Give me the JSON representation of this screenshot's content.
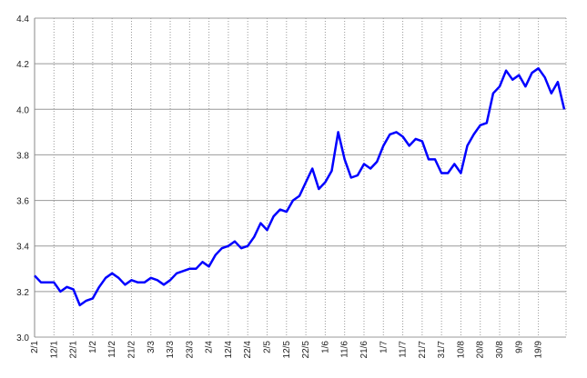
{
  "chart_data": {
    "type": "line",
    "categories": [
      "2/1",
      null,
      null,
      "12/1",
      null,
      null,
      "22/1",
      null,
      null,
      "1/2",
      null,
      null,
      "11/2",
      null,
      null,
      "21/2",
      null,
      null,
      "3/3",
      null,
      null,
      "13/3",
      null,
      null,
      "23/3",
      null,
      null,
      "2/4",
      null,
      null,
      "12/4",
      null,
      null,
      "22/4",
      null,
      null,
      "2/5",
      null,
      null,
      "12/5",
      null,
      null,
      "22/5",
      null,
      null,
      "1/6",
      null,
      null,
      "11/6",
      null,
      null,
      "21/6",
      null,
      null,
      "1/7",
      null,
      null,
      "11/7",
      null,
      null,
      "21/7",
      null,
      null,
      "31/7",
      null,
      null,
      "10/8",
      null,
      null,
      "20/8",
      null,
      null,
      "30/8",
      null,
      null,
      "9/9",
      null,
      null,
      "19/9",
      null,
      null,
      null,
      null
    ],
    "values": [
      3.27,
      3.24,
      3.24,
      3.24,
      3.2,
      3.22,
      3.21,
      3.14,
      3.16,
      3.17,
      3.22,
      3.26,
      3.28,
      3.26,
      3.23,
      3.25,
      3.24,
      3.24,
      3.26,
      3.25,
      3.23,
      3.25,
      3.28,
      3.29,
      3.3,
      3.3,
      3.33,
      3.31,
      3.36,
      3.39,
      3.4,
      3.42,
      3.39,
      3.4,
      3.44,
      3.5,
      3.47,
      3.53,
      3.56,
      3.55,
      3.6,
      3.62,
      3.68,
      3.74,
      3.65,
      3.68,
      3.73,
      3.9,
      3.78,
      3.7,
      3.71,
      3.76,
      3.74,
      3.77,
      3.84,
      3.89,
      3.9,
      3.88,
      3.84,
      3.87,
      3.86,
      3.78,
      3.78,
      3.72,
      3.72,
      3.76,
      3.72,
      3.84,
      3.89,
      3.93,
      3.94,
      4.07,
      4.1,
      4.17,
      4.13,
      4.15,
      4.1,
      4.16,
      4.18,
      4.14,
      4.07,
      4.12,
      4.0
    ],
    "color": "#0000ff",
    "ylim": [
      3.0,
      4.4
    ],
    "yticks": [
      {
        "value": 3,
        "label": "3.0"
      },
      {
        "value": 3.2,
        "label": "3.2"
      },
      {
        "value": 3.4,
        "label": "3.4"
      },
      {
        "value": 3.6,
        "label": "3.6"
      },
      {
        "value": 3.8,
        "label": "3.8"
      },
      {
        "value": 4,
        "label": "4.0"
      },
      {
        "value": 4.2,
        "label": "4.2"
      },
      {
        "value": 4.4,
        "label": "4.4"
      }
    ],
    "grid": true
  }
}
